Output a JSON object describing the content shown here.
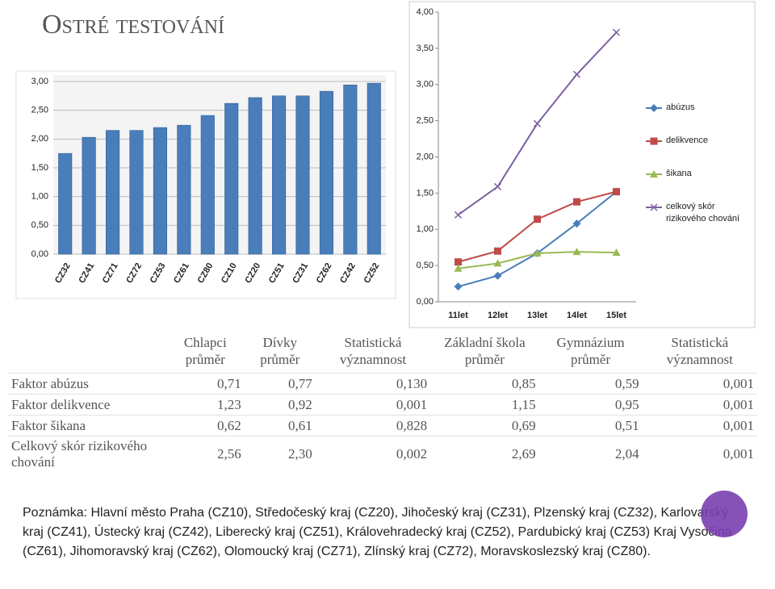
{
  "title": "Ostré testování",
  "chart_data": [
    {
      "type": "bar",
      "color": "#4a7ebb",
      "categories": [
        "CZ32",
        "CZ41",
        "CZ71",
        "CZ72",
        "CZ53",
        "CZ61",
        "CZ80",
        "CZ10",
        "CZ20",
        "CZ51",
        "CZ31",
        "CZ62",
        "CZ42",
        "CZ52"
      ],
      "values": [
        1.75,
        2.03,
        2.15,
        2.15,
        2.2,
        2.24,
        2.41,
        2.62,
        2.72,
        2.75,
        2.75,
        2.83,
        2.94,
        2.97
      ],
      "ylim": [
        0,
        3
      ],
      "yticks": [
        {
          "value": 0,
          "label": "0,00"
        },
        {
          "value": 0.5,
          "label": "0,50"
        },
        {
          "value": 1,
          "label": "1,00"
        },
        {
          "value": 1.5,
          "label": "1,50"
        },
        {
          "value": 2,
          "label": "2,00"
        },
        {
          "value": 2.5,
          "label": "2,50"
        },
        {
          "value": 3,
          "label": "3,00"
        }
      ],
      "grid": true
    },
    {
      "type": "line",
      "categories": [
        "11let",
        "12let",
        "13let",
        "14let",
        "15let"
      ],
      "series": [
        {
          "name": "abúzus",
          "color": "#4a7ebb",
          "marker": "diamond",
          "values": [
            0.21,
            0.36,
            0.67,
            1.08,
            1.52
          ]
        },
        {
          "name": "delikvence",
          "color": "#be4b48",
          "marker": "square",
          "values": [
            0.55,
            0.7,
            1.14,
            1.38,
            1.52
          ]
        },
        {
          "name": "šikana",
          "color": "#98b954",
          "marker": "triangle",
          "values": [
            0.46,
            0.53,
            0.67,
            0.69,
            0.68
          ]
        },
        {
          "name": "celkový skór rizikového chování",
          "color": "#7d60a0",
          "marker": "x",
          "values": [
            1.2,
            1.59,
            2.46,
            3.14,
            3.72
          ]
        }
      ],
      "ylim": [
        0,
        4
      ],
      "yticks": [
        {
          "value": 0,
          "label": "0,00"
        },
        {
          "value": 0.5,
          "label": "0,50"
        },
        {
          "value": 1,
          "label": "1,00"
        },
        {
          "value": 1.5,
          "label": "1,50"
        },
        {
          "value": 2,
          "label": "2,00"
        },
        {
          "value": 2.5,
          "label": "2,50"
        },
        {
          "value": 3,
          "label": "3,00"
        },
        {
          "value": 3.5,
          "label": "3,50"
        },
        {
          "value": 4,
          "label": "4,00"
        }
      ],
      "legend": "right"
    }
  ],
  "table": {
    "header": [
      "Chlapci průměr",
      "Dívky průměr",
      "Statistická významnost",
      "Základní škola průměr",
      "Gymnázium průměr",
      "Statistická významnost"
    ],
    "rows": [
      [
        "Faktor abúzus",
        "0,71",
        "0,77",
        "0,130",
        "0,85",
        "0,59",
        "0,001"
      ],
      [
        "Faktor delikvence",
        "1,23",
        "0,92",
        "0,001",
        "1,15",
        "0,95",
        "0,001"
      ],
      [
        "Faktor šikana",
        "0,62",
        "0,61",
        "0,828",
        "0,69",
        "0,51",
        "0,001"
      ],
      [
        "Celkový skór rizikového chování",
        "2,56",
        "2,30",
        "0,002",
        "2,69",
        "2,04",
        "0,001"
      ]
    ]
  },
  "note": "Poznámka: Hlavní město Praha (CZ10), Středočeský kraj (CZ20), Jihočeský kraj (CZ31), Plzenský kraj (CZ32), Karlovarský kraj (CZ41), Ústecký kraj (CZ42), Liberecký kraj (CZ51), Královehradecký kraj (CZ52), Pardubický kraj (CZ53) Kraj Vysočina (CZ61), Jihomoravský kraj (CZ62), Olomoucký kraj (CZ71), Zlínský kraj (CZ72), Moravskoslezský kraj (CZ80)."
}
